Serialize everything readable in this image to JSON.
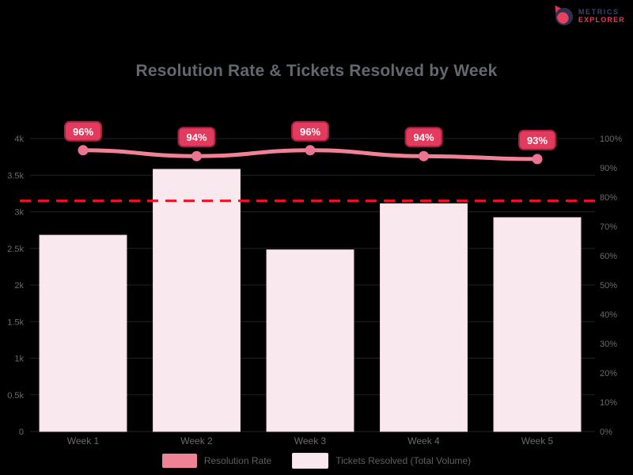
{
  "brand": {
    "line1": "METRICS",
    "line2": "EXPLORER"
  },
  "chart_data": {
    "type": "bar",
    "title": "Resolution Rate & Tickets Resolved by Week",
    "categories": [
      "Week 1",
      "Week 2",
      "Week 3",
      "Week 4",
      "Week 5"
    ],
    "series": [
      {
        "name": "Tickets Resolved (Total Volume)",
        "type": "bar",
        "axis": "left",
        "values": [
          2680,
          3580,
          2480,
          3110,
          2920
        ]
      },
      {
        "name": "Resolution Rate",
        "type": "line",
        "axis": "right",
        "unit": "%",
        "values": [
          96,
          94,
          96,
          94,
          93
        ],
        "data_labels": [
          "96%",
          "94%",
          "96%",
          "94%",
          "93%"
        ]
      }
    ],
    "target_line": {
      "axis": "left",
      "value": 3150,
      "style": "dashed"
    },
    "left_axis": {
      "min": 0,
      "max": 4000,
      "step": 500,
      "tick_labels": [
        "4k",
        "3.5k",
        "3k",
        "2.5k",
        "2k",
        "1.5k",
        "1k",
        "0.5k",
        "0"
      ]
    },
    "right_axis": {
      "min": 0,
      "max": 100,
      "step": 10,
      "tick_labels": [
        "100%",
        "90%",
        "80%",
        "70%",
        "60%",
        "50%",
        "40%",
        "30%",
        "20%",
        "10%",
        "0%"
      ]
    },
    "grid": "horizontal-faint",
    "legend_position": "bottom-center",
    "colors": {
      "background": "#000000",
      "bar_fill": "#f9e9ef",
      "bar_border": "#ecd2dc",
      "line": "#f08296",
      "marker": "#ed7490",
      "label_box_fill": "#e23b5d",
      "label_box_border": "#a6203f",
      "label_text": "#ffffff",
      "target": "#f60f1e",
      "grid": "#232323",
      "axis_text": "#6a6a6a",
      "title_text": "#64676f"
    }
  },
  "legend": {
    "items": [
      {
        "label": "Resolution Rate",
        "swatch": "line-color"
      },
      {
        "label": "Tickets Resolved (Total Volume)",
        "swatch": "bar-color"
      }
    ]
  }
}
